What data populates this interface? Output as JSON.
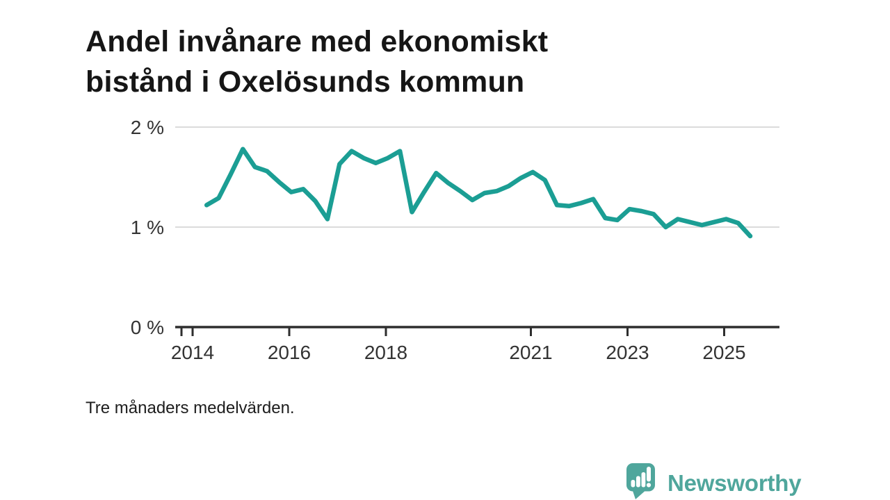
{
  "page": {
    "background": "#ffffff"
  },
  "title": {
    "line1": "Andel invånare med ekonomiskt",
    "line2": "bistånd i Oxelösunds kommun"
  },
  "footnote": "Tre månaders medelvärden.",
  "branding": {
    "name": "Newsworthy",
    "color": "#4fa69c",
    "icon": "bar-chart-speech-bubble"
  },
  "chart_data": {
    "type": "line",
    "title": "Andel invånare med ekonomiskt bistånd i Oxelösunds kommun",
    "note": "Tre månaders medelvärden.",
    "unit": "%",
    "line_color": "#1b9e94",
    "grid": "horizontal",
    "legend": "none",
    "axis_color": "#2e2e2e",
    "grid_color": "#dbdbdb",
    "xlim": [
      2013.64,
      2026.15
    ],
    "ylim": [
      0,
      2.16
    ],
    "y_ticks": [
      {
        "label": "2 %",
        "value": 2
      },
      {
        "label": "1 %",
        "value": 1
      },
      {
        "label": "0 %",
        "value": 0
      }
    ],
    "x_ticks": [
      {
        "label": "2014",
        "year": 2014
      },
      {
        "label": "2016",
        "year": 2016
      },
      {
        "label": "2018",
        "year": 2018
      },
      {
        "label": "2021",
        "year": 2021
      },
      {
        "label": "2023",
        "year": 2023
      },
      {
        "label": "2025",
        "year": 2025
      }
    ],
    "series": [
      {
        "name": "Andel invånare med ekonomiskt bistånd",
        "x_start_year": 2014.29,
        "x_step_years": 0.25,
        "values": [
          1.22,
          1.29,
          1.53,
          1.78,
          1.6,
          1.56,
          1.45,
          1.35,
          1.38,
          1.26,
          1.08,
          1.63,
          1.76,
          1.69,
          1.64,
          1.69,
          1.76,
          1.15,
          1.35,
          1.54,
          1.44,
          1.36,
          1.27,
          1.34,
          1.36,
          1.41,
          1.49,
          1.55,
          1.47,
          1.22,
          1.21,
          1.24,
          1.28,
          1.09,
          1.07,
          1.18,
          1.16,
          1.13,
          1.0,
          1.08,
          1.05,
          1.02,
          1.05,
          1.08,
          1.04,
          0.91
        ]
      }
    ]
  }
}
